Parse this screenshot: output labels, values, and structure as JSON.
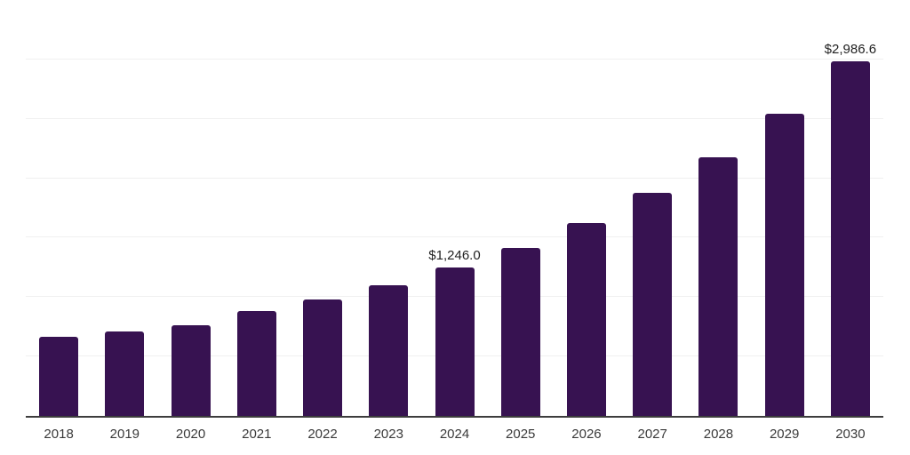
{
  "chart_data": {
    "type": "bar",
    "categories": [
      "2018",
      "2019",
      "2020",
      "2021",
      "2022",
      "2023",
      "2024",
      "2025",
      "2026",
      "2027",
      "2028",
      "2029",
      "2030"
    ],
    "values": [
      665,
      710,
      760,
      880,
      980,
      1100,
      1246.0,
      1410,
      1620,
      1875,
      2180,
      2545,
      2986.6
    ],
    "labeled_points": [
      {
        "category": "2024",
        "label": "$1,246.0"
      },
      {
        "category": "2030",
        "label": "$2,986.6"
      }
    ],
    "ylim": [
      0,
      3500
    ],
    "grid_step": 500,
    "grid": true,
    "legend": false,
    "colors": {
      "bar": "#371251",
      "grid": "#f0f0f0",
      "axis": "#3d3d3d",
      "tick_label": "#3a3a3a",
      "value_label": "#1f1f1f",
      "background": "#ffffff"
    }
  }
}
